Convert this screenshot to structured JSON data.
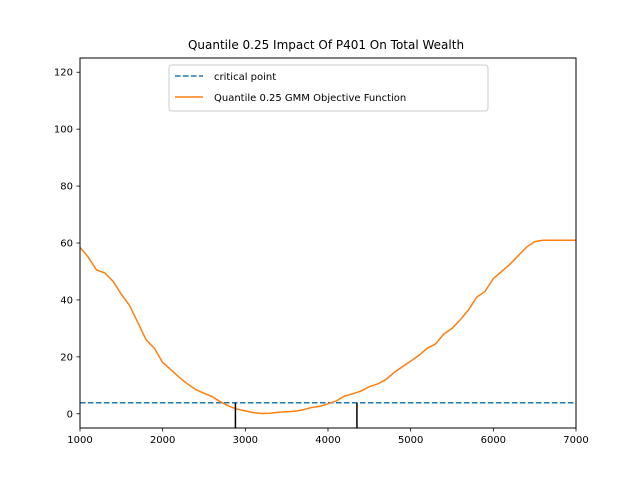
{
  "chart_data": {
    "type": "line",
    "title": "Quantile 0.25 Impact Of P401 On Total Wealth",
    "xlabel": "",
    "ylabel": "",
    "xlim": [
      1000,
      7000
    ],
    "ylim": [
      -5,
      125
    ],
    "xticks": [
      1000,
      2000,
      3000,
      4000,
      5000,
      6000,
      7000
    ],
    "yticks": [
      0,
      20,
      40,
      60,
      80,
      100,
      120
    ],
    "legend_position": "upper-center",
    "series": [
      {
        "name": "critical point",
        "style": "dashed",
        "color": "#1f77b4",
        "x": [
          1000,
          7000
        ],
        "y": [
          3.84,
          3.84
        ]
      },
      {
        "name": "Quantile 0.25 GMM Objective Function",
        "style": "solid",
        "color": "#ff7f0e",
        "x": [
          1000,
          1100,
          1200,
          1300,
          1400,
          1500,
          1600,
          1700,
          1800,
          1900,
          2000,
          2100,
          2200,
          2300,
          2400,
          2500,
          2600,
          2700,
          2800,
          2900,
          3000,
          3100,
          3200,
          3300,
          3400,
          3500,
          3600,
          3700,
          3800,
          3900,
          4000,
          4100,
          4200,
          4300,
          4400,
          4500,
          4600,
          4700,
          4800,
          4900,
          5000,
          5100,
          5200,
          5300,
          5400,
          5500,
          5600,
          5700,
          5800,
          5900,
          6000,
          6100,
          6200,
          6300,
          6400,
          6500,
          6600,
          6700,
          6800,
          6900,
          7000
        ],
        "y": [
          58.5,
          55,
          50.5,
          49.5,
          46.5,
          42,
          38,
          32,
          26,
          23,
          18,
          15.5,
          12.8,
          10.5,
          8.5,
          7.2,
          6,
          4.2,
          2.7,
          1.6,
          1.0,
          0.4,
          0.1,
          0.2,
          0.5,
          0.7,
          0.9,
          1.4,
          2.2,
          2.6,
          3.5,
          4.5,
          6.2,
          7.0,
          8.0,
          9.5,
          10.5,
          12,
          14.5,
          16.5,
          18.5,
          20.5,
          23,
          24.5,
          28,
          30,
          33,
          36.5,
          41,
          43,
          47.5,
          50,
          52.5,
          55.5,
          58.5,
          60.5,
          61,
          61,
          61,
          61,
          61
        ]
      }
    ],
    "annotations": {
      "vertical_markers_x": [
        2880,
        4350
      ],
      "vertical_marker_color": "#000000"
    }
  }
}
